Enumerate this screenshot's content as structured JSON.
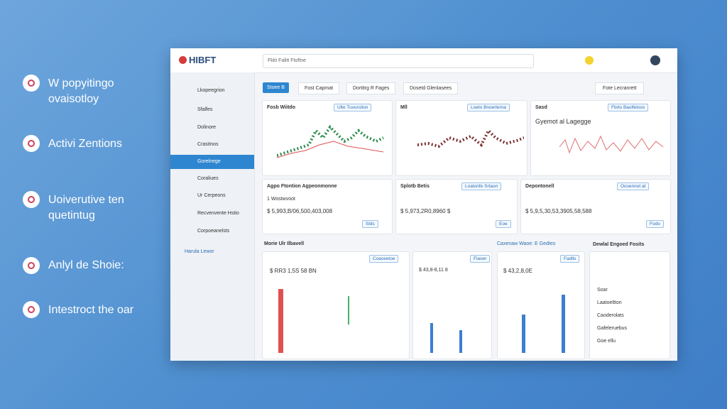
{
  "features": [
    {
      "label": "W popyitingo ovaisotloy"
    },
    {
      "label": "Activi Zentions"
    },
    {
      "label": "Uoiverutive ten quetintug"
    },
    {
      "label": "Anlyl de Shoie:"
    },
    {
      "label": "Intestroct the oar"
    }
  ],
  "header": {
    "logo": "HIBFT",
    "search": "Fkkt Falitt Ftoftne"
  },
  "sidebar": {
    "items": [
      "Lkopeegrion",
      "Sfalfes",
      "Dolinore",
      "Crasitnos",
      "Gorelnege",
      "Coraliues",
      "Ur Cerpeons",
      "Recvenvente Hstio",
      "Corpoeanelsts"
    ],
    "footer": "Harula Lewor"
  },
  "tabs": [
    "Stoee B",
    "Fost Capmat",
    "Dortitrg R Fages",
    "Dosetd Glenlasees"
  ],
  "dropdown": "Fote Lecranrett",
  "row1": [
    {
      "title": "Fosb Wiitdo",
      "button": "Ulte Tuvurciton"
    },
    {
      "title": "Mll",
      "button": "Loeto Bnoerlerna"
    },
    {
      "title": "Sasd",
      "button": "Fbrto Baolfeloos",
      "subtitle": "Gyemot al Lagegge"
    }
  ],
  "row2": [
    {
      "title": "Agpo Ftontion Agpeonmonne",
      "line": "1 Wostwvoot",
      "amount": "$ 5,993,B/06,500,403,008",
      "button": "Slds"
    },
    {
      "title": "Splotb Betis",
      "button": "Loatonfe Srtaon",
      "amount": "$ 5,973,2R0,8960 $",
      "action": "Eoe"
    },
    {
      "title": "Depontonell",
      "button": "Ocoennot at",
      "amount": "$ 5,9,5,30,53,3905,58,588",
      "action": "Fodo"
    }
  ],
  "row3": {
    "heading": "Morie Ulr Ilbavell",
    "heading2": "Caxenaw Waoe: E Gedtes",
    "cards": [
      {
        "amount": "$ RR3 1,5S 58 BN",
        "button": "Coaceetoe"
      },
      {
        "amount": "$ 43,8-8,11 8",
        "button": "Fiaoer"
      },
      {
        "amount": "$ 43,2,8,0E",
        "button": "Fadlls"
      },
      {
        "title": "Dewlal Engoed Fosits",
        "rows": [
          "Soar",
          "Laatoeltton",
          "Caoderolats",
          "Gafeleruebus",
          "Goe ellu"
        ]
      }
    ]
  }
}
